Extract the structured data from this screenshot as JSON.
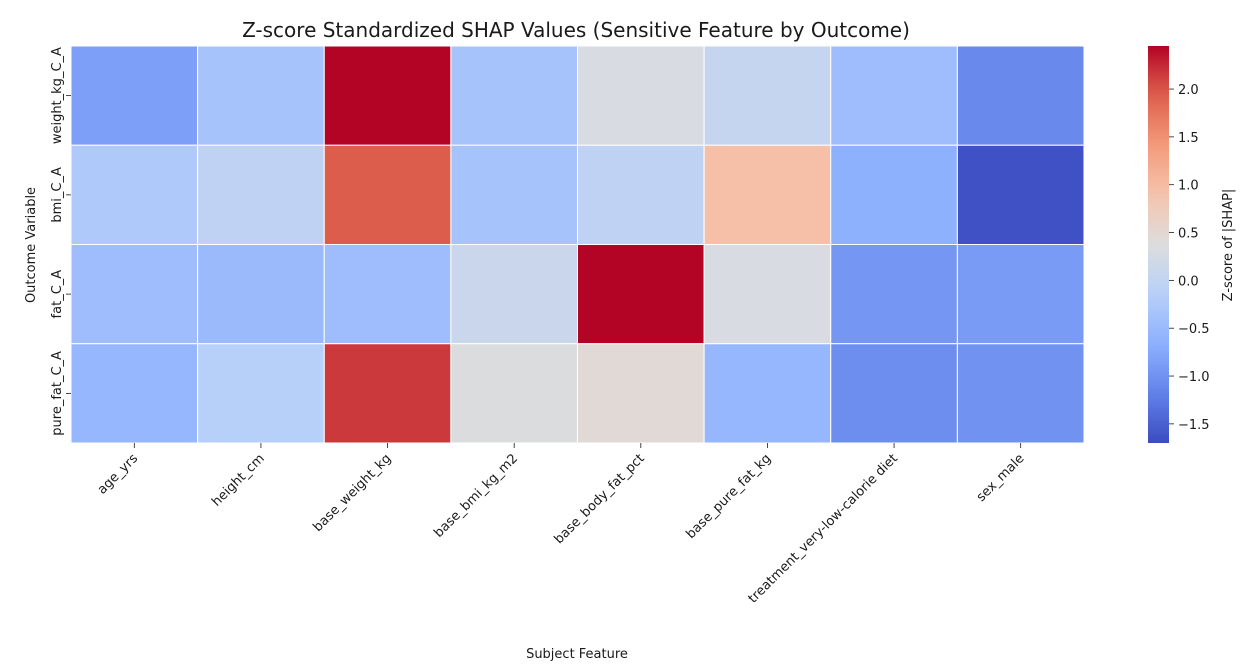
{
  "chart_data": {
    "type": "heatmap",
    "title": "Z-score Standardized SHAP Values (Sensitive Feature by Outcome)",
    "xlabel": "Subject Feature",
    "ylabel": "Outcome Variable",
    "colorbar_label": "Z-score of |SHAP|",
    "colormap": "coolwarm",
    "vmin": -1.7,
    "vmax": 2.45,
    "colorbar_ticks": [
      2.0,
      1.5,
      1.0,
      0.5,
      0.0,
      -0.5,
      -1.0,
      -1.5
    ],
    "colorbar_tick_labels": [
      "2.0",
      "1.5",
      "1.0",
      "0.5",
      "0.0",
      "−0.5",
      "−1.0",
      "−1.5"
    ],
    "x_categories": [
      "age_yrs",
      "height_cm",
      "base_weight_kg",
      "base_bmi_kg_m2",
      "base_body_fat_pct",
      "base_pure_fat_kg",
      "treatment_very-low-calorie diet",
      "sex_male"
    ],
    "y_categories": [
      "weight_kg_C_A",
      "bmi_C_A",
      "fat_C_A",
      "pure_fat_C_A"
    ],
    "values": [
      [
        -0.85,
        -0.35,
        2.45,
        -0.35,
        0.3,
        0.05,
        -0.45,
        -1.1
      ],
      [
        -0.25,
        -0.05,
        1.95,
        -0.35,
        -0.05,
        0.95,
        -0.65,
        -1.65
      ],
      [
        -0.45,
        -0.5,
        -0.45,
        0.1,
        2.45,
        0.3,
        -0.95,
        -0.9
      ],
      [
        -0.55,
        -0.15,
        2.15,
        0.35,
        0.45,
        -0.55,
        -1.05,
        -1.0
      ]
    ],
    "grid": false,
    "legend": "colorbar-right"
  }
}
